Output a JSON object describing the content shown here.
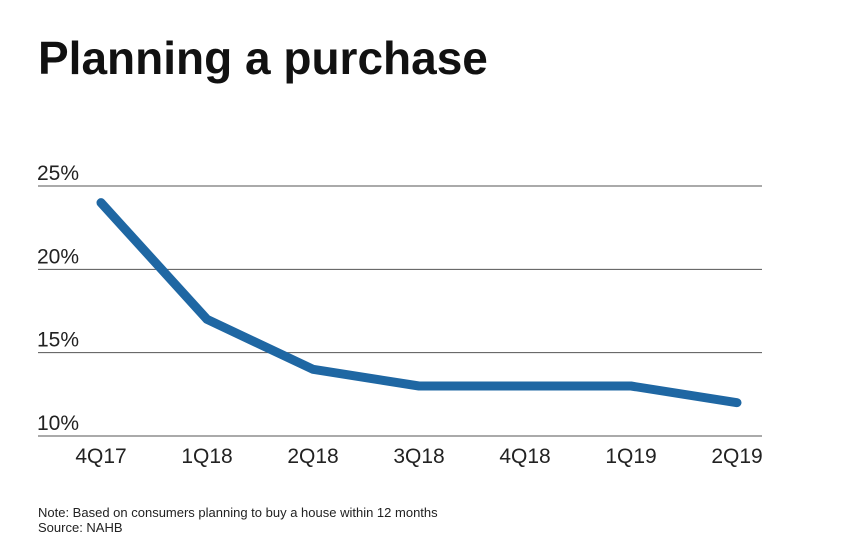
{
  "chart_data": {
    "type": "line",
    "title": "Planning a purchase",
    "categories": [
      "4Q17",
      "1Q18",
      "2Q18",
      "3Q18",
      "4Q18",
      "1Q19",
      "2Q19"
    ],
    "series": [
      {
        "values": [
          24,
          17,
          14,
          13,
          13,
          13,
          12
        ]
      }
    ],
    "y_ticks": [
      {
        "value": 25,
        "label": "25%"
      },
      {
        "value": 20,
        "label": "20%"
      },
      {
        "value": 15,
        "label": "15%"
      },
      {
        "value": 10,
        "label": "10%"
      }
    ],
    "ylim": [
      10,
      25
    ],
    "grid": true,
    "line_color": "#1f67a3",
    "grid_color": "#555555"
  },
  "note": "Note: Based on consumers planning to buy a house within 12 months",
  "source": "Source: NAHB"
}
